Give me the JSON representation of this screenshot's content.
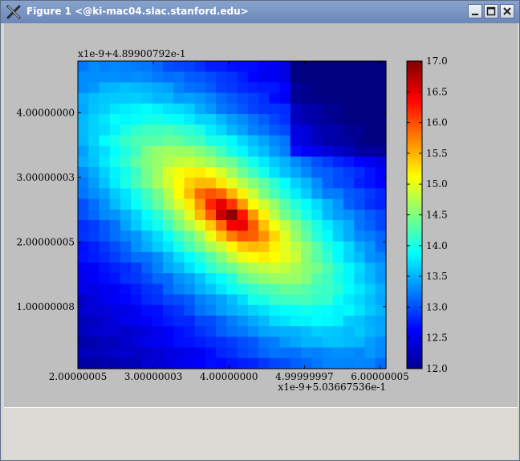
{
  "window": {
    "title": "Figure 1 <@ki-mac04.slac.stanford.edu>",
    "minimize_icon": "minimize-icon",
    "maximize_icon": "maximize-icon",
    "close_icon": "close-icon"
  },
  "chart_data": {
    "type": "heatmap",
    "title": "",
    "xlabel": "",
    "ylabel": "",
    "x_offset_text": "x1e-9+5.03667536e-1",
    "y_offset_text": "x1e-9+4.89900792e-1",
    "x_ticks": [
      "2.00000005",
      "3.00000003",
      "4.00000000",
      "4.99999997",
      "6.00000005"
    ],
    "y_ticks": [
      "1.00000008",
      "2.00000005",
      "3.00000003",
      "4.00000000"
    ],
    "x_tick_values": [
      2.00000005,
      3.00000003,
      4.0,
      4.99999997,
      6.00000005
    ],
    "y_tick_values": [
      1.00000008,
      2.00000005,
      3.00000003,
      4.0
    ],
    "xlim": [
      2.00000005,
      6.0800001
    ],
    "ylim": [
      0.04,
      4.8
    ],
    "colormap": "jet",
    "colorbar": {
      "min": 12.0,
      "max": 17.0,
      "ticks": [
        "12.0",
        "12.5",
        "13.0",
        "13.5",
        "14.0",
        "14.5",
        "15.0",
        "15.5",
        "16.0",
        "16.5",
        "17.0"
      ]
    },
    "grid": false,
    "peak": {
      "x": 4.0,
      "y": 2.42,
      "value": 17.0
    }
  }
}
